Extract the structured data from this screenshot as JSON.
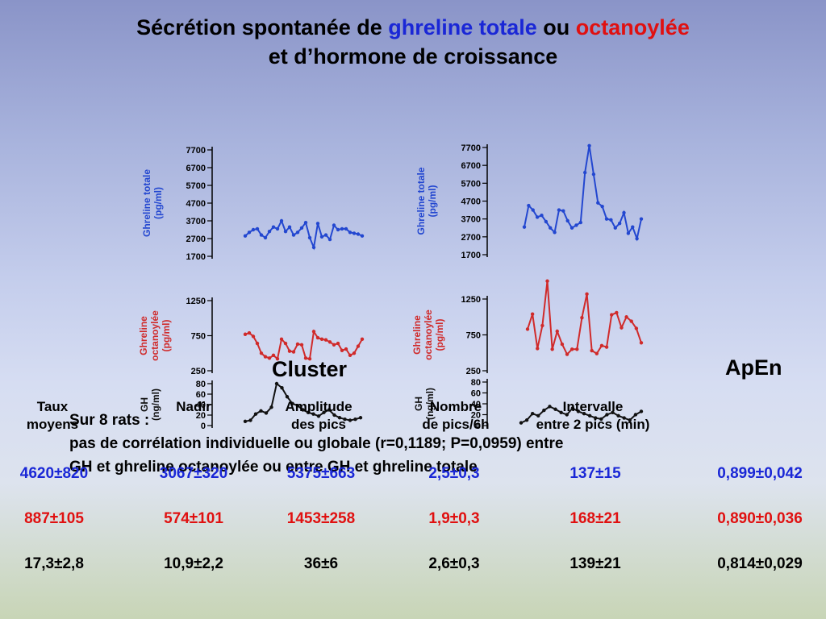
{
  "title": {
    "line1_part1": "Sécrétion spontanée de ",
    "line1_part2": "ghreline totale",
    "line1_part3": " ou ",
    "line1_part4": "octanoylée",
    "line2": "et d’hormone de croissance"
  },
  "headings": {
    "cluster": "Cluster",
    "apen": "ApEn"
  },
  "columns": {
    "c1": [
      "Taux",
      "moyens"
    ],
    "c2": [
      "Nadir"
    ],
    "c3": [
      "Amplitude",
      "des pics"
    ],
    "c4": [
      "Nombre",
      "de pics/6h"
    ],
    "c5": [
      "Intervalle",
      "entre 2 pics (min)"
    ]
  },
  "note": {
    "line1": "Sur 8 rats :",
    "line2": "pas de corrélation individuelle ou globale (r=0,1189; P=0,0959) entre",
    "line3": "GH et ghreline octanoylée ou entre GH et ghreline totale"
  },
  "rows": [
    {
      "color": "#1a27d6",
      "values": [
        "4620±820",
        "3067±320",
        "5375±663",
        "2,5±0,3",
        "137±15",
        "0,899±0,042"
      ]
    },
    {
      "color": "#e01010",
      "values": [
        "887±105",
        "574±101",
        "1453±258",
        "1,9±0,3",
        "168±21",
        "0,890±0,036"
      ]
    },
    {
      "color": "#000000",
      "values": [
        "17,3±2,8",
        "10,9±2,2",
        "36±6",
        "2,6±0,3",
        "139±21",
        "0,814±0,029"
      ]
    }
  ],
  "chart_data": [
    {
      "type": "line",
      "panel": "left-top",
      "color": "#2347d0",
      "ylabel": [
        "Ghreline totale",
        "(pg/ml)"
      ],
      "yticks": [
        7700,
        6700,
        5700,
        4700,
        3700,
        2700,
        1700
      ],
      "ylim": [
        1700,
        7700
      ],
      "series": [
        {
          "values": [
            2850,
            3050,
            3200,
            3250,
            2900,
            2750,
            3100,
            3350,
            3250,
            3700,
            3100,
            3350,
            2900,
            3050,
            3300,
            3600,
            2750,
            2200,
            3550,
            2800,
            2900,
            2650,
            3450,
            3200,
            3250,
            3250,
            3050,
            3000,
            2950,
            2850
          ]
        }
      ]
    },
    {
      "type": "line",
      "panel": "right-top",
      "color": "#2347d0",
      "ylabel": [
        "Ghreline totale",
        "(pg/ml)"
      ],
      "yticks": [
        7700,
        6700,
        5700,
        4700,
        3700,
        2700,
        1700
      ],
      "ylim": [
        1700,
        7700
      ],
      "series": [
        {
          "values": [
            3250,
            4450,
            4200,
            3800,
            3900,
            3550,
            3200,
            2950,
            4200,
            4150,
            3600,
            3200,
            3350,
            3500,
            6300,
            7800,
            6200,
            4600,
            4400,
            3700,
            3650,
            3200,
            3450,
            4050,
            2900,
            3250,
            2600,
            3700
          ]
        }
      ]
    },
    {
      "type": "line",
      "panel": "left-middle",
      "color": "#d02a2a",
      "ylabel": [
        "Ghreline",
        "octanoylée",
        "(pg/ml)"
      ],
      "yticks": [
        1250,
        750,
        250
      ],
      "ylim": [
        250,
        1250
      ],
      "series": [
        {
          "values": [
            770,
            790,
            740,
            640,
            500,
            450,
            430,
            470,
            420,
            700,
            640,
            530,
            520,
            630,
            620,
            430,
            420,
            810,
            720,
            700,
            690,
            660,
            620,
            640,
            540,
            560,
            470,
            500,
            600,
            700
          ]
        }
      ]
    },
    {
      "type": "line",
      "panel": "right-middle",
      "color": "#d02a2a",
      "ylabel": [
        "Ghreline",
        "octanoylée",
        "(pg/ml)"
      ],
      "yticks": [
        1250,
        750,
        250
      ],
      "ylim": [
        250,
        1250
      ],
      "series": [
        {
          "values": [
            830,
            1040,
            560,
            880,
            1500,
            550,
            800,
            620,
            480,
            550,
            550,
            990,
            1320,
            530,
            490,
            600,
            580,
            1030,
            1060,
            850,
            1000,
            940,
            840,
            640
          ]
        }
      ]
    },
    {
      "type": "line",
      "panel": "left-bottom",
      "color": "#111111",
      "ylabel": [
        "GH",
        "(ng/ml)"
      ],
      "yticks": [
        80,
        60,
        40,
        20,
        0
      ],
      "ylim": [
        0,
        80
      ],
      "series": [
        {
          "values": [
            8,
            10,
            22,
            28,
            24,
            35,
            80,
            72,
            55,
            42,
            38,
            30,
            25,
            22,
            18,
            25,
            30,
            20,
            15,
            12,
            10,
            12,
            15
          ]
        }
      ]
    },
    {
      "type": "line",
      "panel": "right-bottom",
      "color": "#111111",
      "ylabel": [
        "GH",
        "(ng/ml)"
      ],
      "yticks": [
        80,
        60,
        40,
        20,
        0
      ],
      "ylim": [
        0,
        80
      ],
      "series": [
        {
          "values": [
            5,
            10,
            22,
            18,
            28,
            35,
            30,
            24,
            20,
            32,
            26,
            22,
            18,
            14,
            12,
            20,
            24,
            18,
            14,
            10,
            20,
            26
          ]
        }
      ]
    }
  ]
}
